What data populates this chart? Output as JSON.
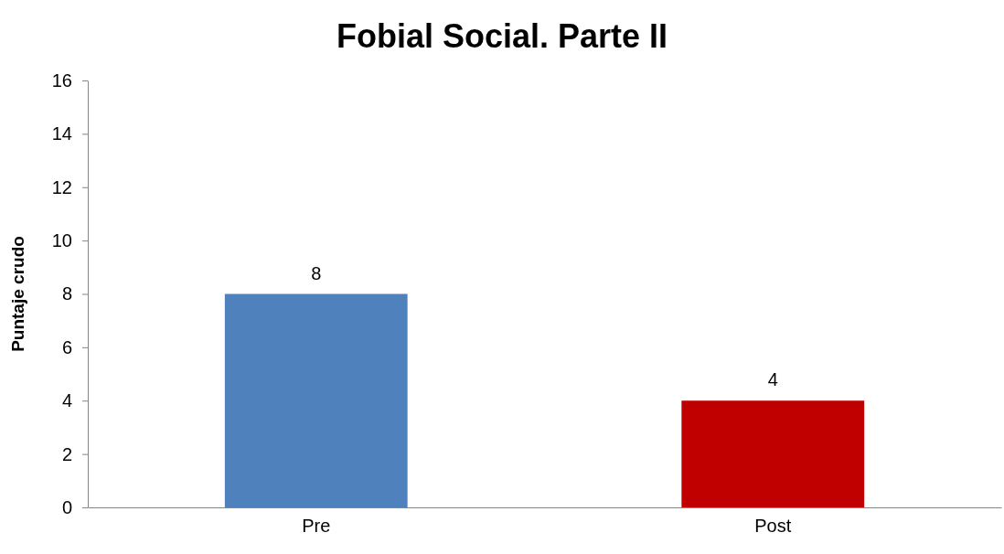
{
  "chart_data": {
    "type": "bar",
    "title": "Fobial Social. Parte II",
    "ylabel": "Puntaje crudo",
    "categories": [
      "Pre",
      "Post"
    ],
    "values": [
      8,
      4
    ],
    "colors": [
      "#4f81bd",
      "#c00000"
    ],
    "ylim": [
      0,
      16
    ],
    "yticks": [
      0,
      2,
      4,
      6,
      8,
      10,
      12,
      14,
      16
    ],
    "data_labels": true,
    "grid": false
  }
}
